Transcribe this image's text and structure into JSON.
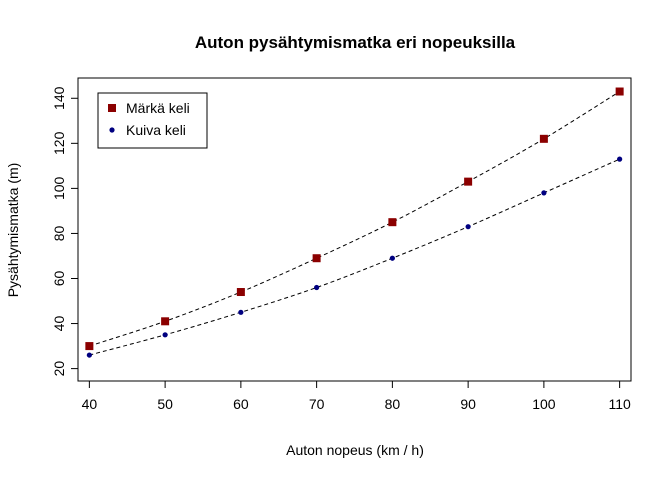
{
  "chart_data": {
    "type": "line",
    "title": "Auton pysähtymismatka eri nopeuksilla",
    "xlabel": "Auton nopeus (km / h)",
    "ylabel": "Pysähtymismatka (m)",
    "x": [
      40,
      50,
      60,
      70,
      80,
      90,
      100,
      110
    ],
    "xticks": [
      40,
      50,
      60,
      70,
      80,
      90,
      100,
      110
    ],
    "yticks": [
      20,
      40,
      60,
      80,
      100,
      120,
      140
    ],
    "xlim": [
      38.5,
      111.5
    ],
    "ylim": [
      14.5,
      149
    ],
    "grid": false,
    "legend_position": "top-left",
    "series": [
      {
        "name": "Märkä keli",
        "marker": "square",
        "color": "#8b0000",
        "values": [
          30,
          41,
          54,
          69,
          85,
          103,
          122,
          143
        ]
      },
      {
        "name": "Kuiva keli",
        "marker": "circle",
        "color": "#000080",
        "values": [
          26,
          35,
          45,
          56,
          69,
          83,
          98,
          113
        ]
      }
    ]
  }
}
